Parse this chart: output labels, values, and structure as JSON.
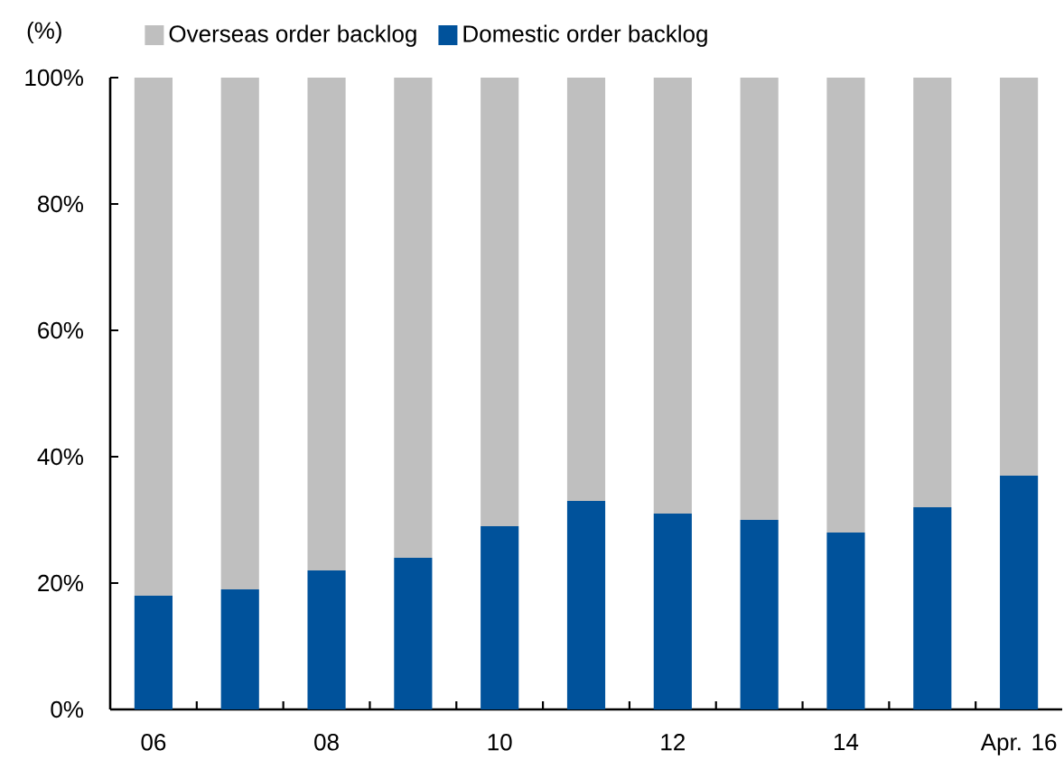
{
  "chart_data": {
    "type": "bar",
    "stacked": true,
    "ylabel": "(%)",
    "categories": [
      "06",
      null,
      "08",
      null,
      "10",
      null,
      "12",
      null,
      "14",
      null,
      "Apr. 16"
    ],
    "series": [
      {
        "name": "Domestic order backlog",
        "color": "#00529b",
        "values": [
          18,
          19,
          22,
          24,
          29,
          33,
          31,
          30,
          28,
          32,
          37
        ]
      },
      {
        "name": "Overseas order backlog",
        "color": "#bfbfbf",
        "values": [
          82,
          81,
          78,
          76,
          71,
          67,
          69,
          70,
          72,
          68,
          63
        ]
      }
    ],
    "ylim": [
      0,
      100
    ],
    "yticks": [
      {
        "value": 0,
        "label": "0%"
      },
      {
        "value": 20,
        "label": "20%"
      },
      {
        "value": 40,
        "label": "40%"
      },
      {
        "value": 60,
        "label": "60%"
      },
      {
        "value": 80,
        "label": "80%"
      },
      {
        "value": 100,
        "label": "100%"
      }
    ],
    "legend": "top"
  }
}
